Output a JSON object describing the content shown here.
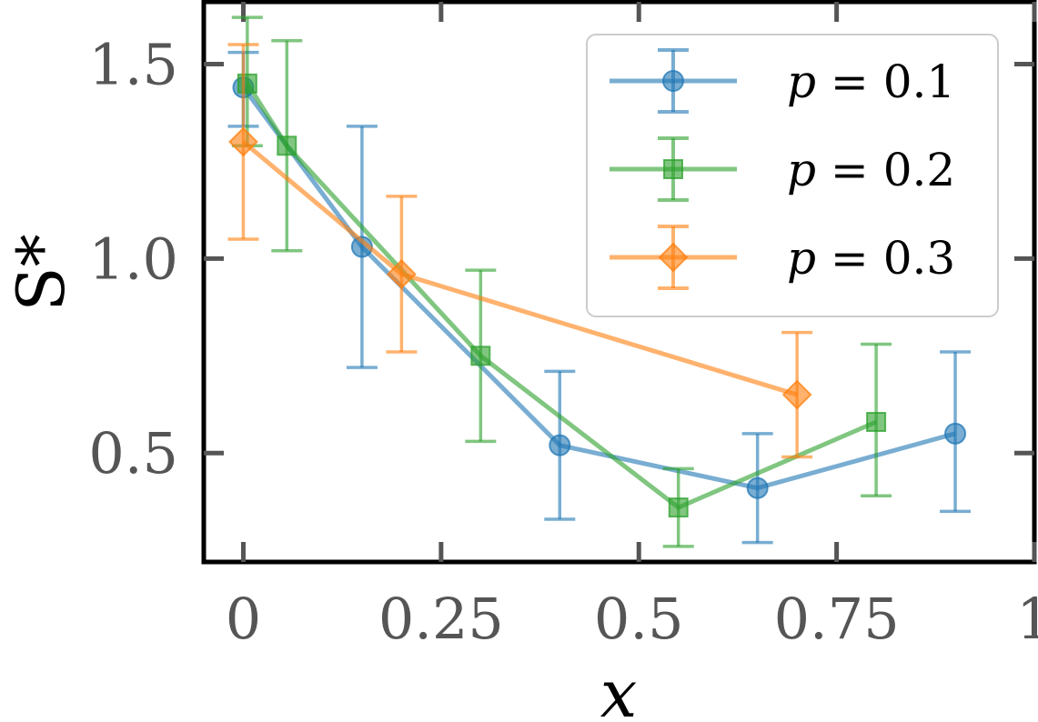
{
  "chart_data": {
    "type": "line",
    "xlabel": "x",
    "ylabel": "S*",
    "xlim": [
      -0.05,
      1.0
    ],
    "ylim": [
      0.22,
      1.66
    ],
    "xticks": [
      {
        "value": 0.0,
        "label": "0"
      },
      {
        "value": 0.25,
        "label": "0.25"
      },
      {
        "value": 0.5,
        "label": "0.5"
      },
      {
        "value": 0.75,
        "label": "0.75"
      },
      {
        "value": 1.0,
        "label": "1"
      }
    ],
    "yticks": [
      {
        "value": 0.5,
        "label": "0.5"
      },
      {
        "value": 1.0,
        "label": "1.0"
      },
      {
        "value": 1.5,
        "label": "1.5"
      }
    ],
    "grid": false,
    "legend_position": "top-right",
    "series": [
      {
        "name": "p = 0.1",
        "label_var": "p",
        "label_value": "0.1",
        "marker": "circle",
        "color": "#1f77b4",
        "x": [
          0.0,
          0.15,
          0.4,
          0.65,
          0.9
        ],
        "y": [
          1.44,
          1.03,
          0.52,
          0.41,
          0.55
        ],
        "err_low": [
          0.1,
          0.31,
          0.19,
          0.14,
          0.2
        ],
        "err_high": [
          0.09,
          0.31,
          0.19,
          0.14,
          0.21
        ]
      },
      {
        "name": "p = 0.2",
        "label_var": "p",
        "label_value": "0.2",
        "marker": "square",
        "color": "#2ca02c",
        "x": [
          0.005,
          0.055,
          0.3,
          0.55,
          0.8
        ],
        "y": [
          1.45,
          1.29,
          0.75,
          0.36,
          0.58
        ],
        "err_low": [
          0.16,
          0.27,
          0.22,
          0.1,
          0.19
        ],
        "err_high": [
          0.17,
          0.27,
          0.22,
          0.1,
          0.2
        ]
      },
      {
        "name": "p = 0.3",
        "label_var": "p",
        "label_value": "0.3",
        "marker": "diamond",
        "color": "#ff7f0e",
        "x": [
          0.0,
          0.2,
          0.7
        ],
        "y": [
          1.3,
          0.96,
          0.65
        ],
        "err_low": [
          0.25,
          0.2,
          0.16
        ],
        "err_high": [
          0.25,
          0.2,
          0.16
        ]
      }
    ]
  }
}
